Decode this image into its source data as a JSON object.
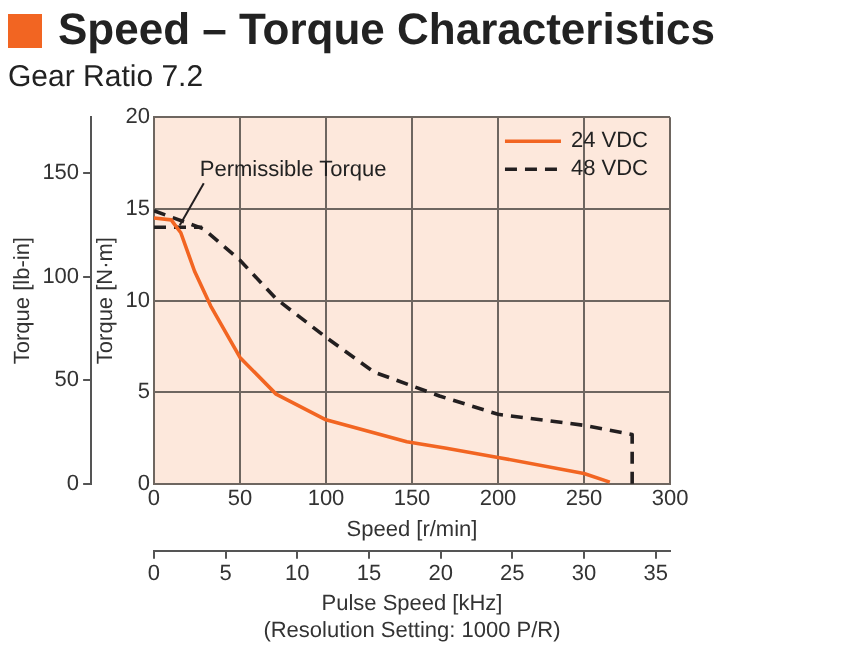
{
  "chart_data": {
    "type": "line",
    "title": "Speed – Torque Characteristics",
    "subtitle": "Gear Ratio 7.2",
    "xlabel": "Speed [r/min]",
    "ylabel": "Torque [N·m]",
    "y2label": "Torque [lb-in]",
    "x2label": "Pulse Speed [kHz]",
    "xlim": [
      0,
      300
    ],
    "xticks": [
      0,
      50,
      100,
      150,
      200,
      250,
      300
    ],
    "ylim": [
      0,
      20
    ],
    "yticks": [
      0,
      5,
      10,
      15,
      20
    ],
    "y2lim": [
      0,
      177
    ],
    "y2ticks": [
      0,
      50,
      100,
      150
    ],
    "x2lim": [
      0,
      36
    ],
    "x2ticks": [
      0,
      5,
      10,
      15,
      20,
      25,
      30,
      35
    ],
    "grid": true,
    "legend": "top right",
    "marker": "none",
    "series": [
      {
        "name": "24 VDC",
        "color": "#f26522",
        "line_style": "solid",
        "x": [
          0,
          10,
          15.6,
          23.6,
          33,
          50,
          71,
          100,
          147,
          170,
          200,
          250,
          265
        ],
        "values": [
          14.5,
          14.4,
          13.7,
          11.6,
          9.7,
          6.9,
          4.9,
          3.5,
          2.3,
          1.95,
          1.45,
          0.57,
          0.1
        ]
      },
      {
        "name": "48 VDC",
        "color": "#231f20",
        "line_style": "dashed",
        "x": [
          0,
          29,
          50,
          71,
          100,
          128,
          166,
          200,
          250,
          278,
          278
        ],
        "values": [
          14.9,
          13.9,
          12.2,
          10.1,
          8,
          6.1,
          4.8,
          3.8,
          3.2,
          2.7,
          0
        ]
      },
      {
        "color": "#231f20",
        "line_style": "dashed",
        "x": [
          0,
          28
        ],
        "values": [
          14,
          14
        ]
      }
    ],
    "annotations": [
      {
        "text": "Permissible Torque",
        "x": 15,
        "y": 14
      },
      "(Resolution Setting: 1000 P/R)"
    ]
  }
}
